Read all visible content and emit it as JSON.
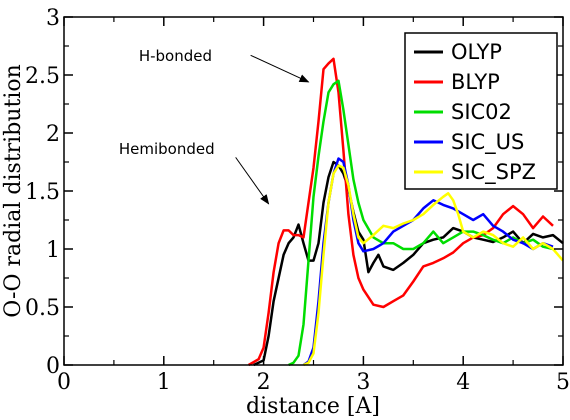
{
  "chart_data": {
    "type": "line",
    "title": "",
    "xlabel": "distance [A]",
    "ylabel": "O-O radial distribution",
    "xlim": [
      0,
      5
    ],
    "ylim": [
      0,
      3
    ],
    "xticks": [
      0,
      1,
      2,
      3,
      4,
      5
    ],
    "yticks": [
      0,
      0.5,
      1,
      1.5,
      2,
      2.5,
      3
    ],
    "x_tick_labels": [
      "0",
      "1",
      "2",
      "3",
      "4",
      "5"
    ],
    "y_tick_labels": [
      "0",
      "0.5",
      "1",
      "1.5",
      "2",
      "2.5",
      "3"
    ],
    "grid": false,
    "legend_position": "top-right",
    "series": [
      {
        "name": "OLYP",
        "color": "#000000",
        "x": [
          1.9,
          2.0,
          2.05,
          2.1,
          2.2,
          2.25,
          2.3,
          2.35,
          2.4,
          2.45,
          2.5,
          2.55,
          2.6,
          2.65,
          2.7,
          2.75,
          2.8,
          2.85,
          2.9,
          2.95,
          3.0,
          3.05,
          3.1,
          3.15,
          3.2,
          3.3,
          3.4,
          3.5,
          3.6,
          3.7,
          3.8,
          3.9,
          4.0,
          4.1,
          4.2,
          4.3,
          4.4,
          4.5,
          4.6,
          4.7,
          4.8,
          4.9,
          5.0
        ],
        "y": [
          0.0,
          0.04,
          0.25,
          0.55,
          0.95,
          1.05,
          1.1,
          1.21,
          1.05,
          0.9,
          0.9,
          1.05,
          1.4,
          1.62,
          1.75,
          1.72,
          1.65,
          1.52,
          1.32,
          1.15,
          1.08,
          0.8,
          0.88,
          0.95,
          0.85,
          0.82,
          0.88,
          0.95,
          1.05,
          1.08,
          1.1,
          1.18,
          1.15,
          1.1,
          1.08,
          1.06,
          1.1,
          1.15,
          1.05,
          1.13,
          1.1,
          1.12,
          1.05
        ]
      },
      {
        "name": "BLYP",
        "color": "#ff0000",
        "x": [
          1.85,
          1.95,
          2.0,
          2.05,
          2.1,
          2.15,
          2.2,
          2.25,
          2.3,
          2.35,
          2.4,
          2.45,
          2.5,
          2.55,
          2.6,
          2.65,
          2.7,
          2.75,
          2.8,
          2.85,
          2.9,
          2.95,
          3.0,
          3.1,
          3.2,
          3.3,
          3.4,
          3.5,
          3.6,
          3.7,
          3.8,
          3.9,
          4.0,
          4.1,
          4.2,
          4.3,
          4.4,
          4.5,
          4.6,
          4.7,
          4.8,
          4.9
        ],
        "y": [
          0.0,
          0.05,
          0.15,
          0.45,
          0.8,
          1.05,
          1.16,
          1.16,
          1.12,
          1.12,
          1.1,
          1.4,
          1.7,
          2.1,
          2.55,
          2.6,
          2.64,
          2.35,
          1.85,
          1.3,
          0.95,
          0.75,
          0.65,
          0.52,
          0.5,
          0.55,
          0.6,
          0.72,
          0.85,
          0.88,
          0.92,
          0.97,
          1.05,
          1.1,
          1.12,
          1.18,
          1.3,
          1.37,
          1.3,
          1.18,
          1.28,
          1.2
        ]
      },
      {
        "name": "SIC02",
        "color": "#00dd00",
        "x": [
          2.25,
          2.3,
          2.35,
          2.4,
          2.45,
          2.5,
          2.55,
          2.6,
          2.65,
          2.7,
          2.75,
          2.8,
          2.85,
          2.9,
          2.95,
          3.0,
          3.1,
          3.2,
          3.3,
          3.4,
          3.5,
          3.6,
          3.7,
          3.8,
          3.9,
          4.0,
          4.1,
          4.2,
          4.3,
          4.4,
          4.5,
          4.6,
          4.7,
          4.8,
          4.9
        ],
        "y": [
          0.0,
          0.02,
          0.08,
          0.35,
          0.9,
          1.45,
          1.8,
          2.1,
          2.35,
          2.42,
          2.45,
          2.2,
          1.9,
          1.6,
          1.4,
          1.25,
          1.1,
          1.05,
          1.05,
          1.0,
          1.0,
          1.05,
          1.15,
          1.05,
          1.1,
          1.15,
          1.15,
          1.12,
          1.08,
          1.05,
          1.1,
          1.05,
          1.08,
          1.02,
          1.0
        ]
      },
      {
        "name": "SIC_US",
        "color": "#0000ff",
        "x": [
          2.4,
          2.45,
          2.5,
          2.55,
          2.6,
          2.65,
          2.7,
          2.75,
          2.8,
          2.85,
          2.9,
          2.95,
          3.0,
          3.1,
          3.2,
          3.3,
          3.4,
          3.5,
          3.6,
          3.7,
          3.8,
          3.9,
          4.0,
          4.1,
          4.2,
          4.3,
          4.4,
          4.5,
          4.6,
          4.7,
          4.8,
          4.9
        ],
        "y": [
          0.0,
          0.03,
          0.15,
          0.55,
          1.05,
          1.4,
          1.65,
          1.78,
          1.75,
          1.55,
          1.25,
          1.05,
          0.98,
          1.0,
          1.05,
          1.15,
          1.2,
          1.25,
          1.35,
          1.42,
          1.38,
          1.35,
          1.3,
          1.25,
          1.3,
          1.2,
          1.15,
          1.08,
          1.05,
          1.0,
          1.05,
          1.02
        ]
      },
      {
        "name": "SIC_SPZ",
        "color": "#ffff00",
        "x": [
          2.4,
          2.45,
          2.5,
          2.55,
          2.6,
          2.65,
          2.7,
          2.75,
          2.8,
          2.85,
          2.9,
          2.95,
          3.0,
          3.1,
          3.2,
          3.3,
          3.4,
          3.5,
          3.6,
          3.7,
          3.8,
          3.85,
          3.9,
          3.95,
          4.0,
          4.1,
          4.2,
          4.3,
          4.4,
          4.5,
          4.6,
          4.7,
          4.8,
          4.9,
          5.0
        ],
        "y": [
          0.0,
          0.02,
          0.1,
          0.45,
          0.95,
          1.4,
          1.65,
          1.72,
          1.7,
          1.55,
          1.3,
          1.1,
          1.05,
          1.12,
          1.2,
          1.18,
          1.22,
          1.25,
          1.3,
          1.38,
          1.45,
          1.48,
          1.42,
          1.3,
          1.15,
          1.1,
          1.15,
          1.12,
          1.05,
          1.02,
          1.1,
          1.0,
          1.05,
          1.0,
          0.9
        ]
      }
    ],
    "annotations": [
      {
        "text": "H-bonded",
        "label_at": [
          0.75,
          2.62
        ],
        "arrow_from": [
          1.87,
          2.67
        ],
        "arrow_to": [
          2.45,
          2.44
        ]
      },
      {
        "text": "Hemibonded",
        "label_at": [
          0.55,
          1.82
        ],
        "arrow_from": [
          1.72,
          1.79
        ],
        "arrow_to": [
          2.05,
          1.39
        ]
      }
    ]
  }
}
